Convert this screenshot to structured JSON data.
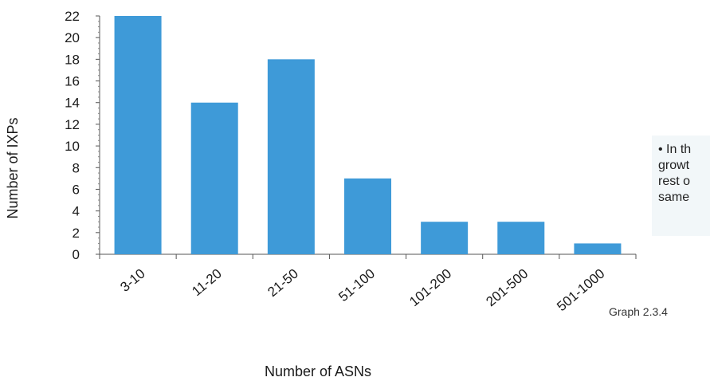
{
  "chart_data": {
    "type": "bar",
    "categories": [
      "3-10",
      "11-20",
      "21-50",
      "51-100",
      "101-200",
      "201-500",
      "501-1000"
    ],
    "values": [
      22,
      14,
      18,
      7,
      3,
      3,
      1
    ],
    "title": "",
    "xlabel": "Number of ASNs",
    "ylabel": "Number of IXPs",
    "ylim": [
      0,
      22
    ],
    "yticks": [
      0,
      2,
      4,
      6,
      8,
      10,
      12,
      14,
      16,
      18,
      20,
      22
    ],
    "grid": false,
    "bar_color": "#3e9ad8"
  },
  "side_note": {
    "lines": [
      "• In th",
      "growt",
      "rest o",
      "same"
    ]
  },
  "caption": "Graph 2.3.4"
}
